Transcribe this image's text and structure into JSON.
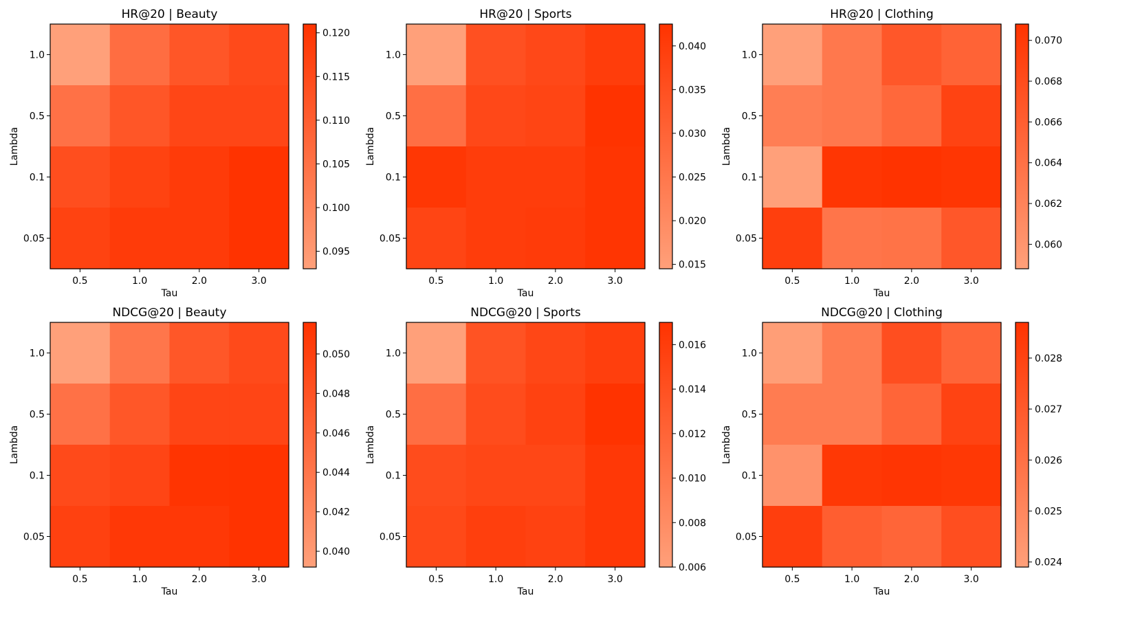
{
  "colormap": {
    "low": "#ffa07a",
    "high": "#ff3300"
  },
  "chart_data": [
    {
      "type": "heatmap",
      "title": "HR@20 | Beauty",
      "xlabel": "Tau",
      "ylabel": "Lambda",
      "x_categories": [
        "0.5",
        "1.0",
        "2.0",
        "3.0"
      ],
      "y_categories": [
        "1.0",
        "0.5",
        "0.1",
        "0.05"
      ],
      "values": [
        [
          0.093,
          0.106,
          0.112,
          0.115
        ],
        [
          0.105,
          0.112,
          0.116,
          0.116
        ],
        [
          0.114,
          0.117,
          0.119,
          0.121
        ],
        [
          0.117,
          0.119,
          0.119,
          0.121
        ]
      ],
      "vmin": 0.093,
      "vmax": 0.121,
      "colorbar_ticks": [
        "0.095",
        "0.100",
        "0.105",
        "0.110",
        "0.115",
        "0.120"
      ],
      "colorbar_tick_values": [
        0.095,
        0.1,
        0.105,
        0.11,
        0.115,
        0.12
      ]
    },
    {
      "type": "heatmap",
      "title": "HR@20 | Sports",
      "xlabel": "Tau",
      "ylabel": "Lambda",
      "x_categories": [
        "0.5",
        "1.0",
        "2.0",
        "3.0"
      ],
      "y_categories": [
        "1.0",
        "0.5",
        "0.1",
        "0.05"
      ],
      "values": [
        [
          0.0145,
          0.035,
          0.037,
          0.04
        ],
        [
          0.027,
          0.037,
          0.038,
          0.0425
        ],
        [
          0.0415,
          0.04,
          0.04,
          0.042
        ],
        [
          0.038,
          0.04,
          0.0405,
          0.042
        ]
      ],
      "vmin": 0.0145,
      "vmax": 0.0425,
      "colorbar_ticks": [
        "0.015",
        "0.020",
        "0.025",
        "0.030",
        "0.035",
        "0.040"
      ],
      "colorbar_tick_values": [
        0.015,
        0.02,
        0.025,
        0.03,
        0.035,
        0.04
      ]
    },
    {
      "type": "heatmap",
      "title": "HR@20 | Clothing",
      "xlabel": "Tau",
      "ylabel": "Lambda",
      "x_categories": [
        "0.5",
        "1.0",
        "2.0",
        "3.0"
      ],
      "y_categories": [
        "1.0",
        "0.5",
        "0.1",
        "0.05"
      ],
      "values": [
        [
          0.0588,
          0.0632,
          0.0668,
          0.0655
        ],
        [
          0.0625,
          0.0632,
          0.065,
          0.069
        ],
        [
          0.0588,
          0.0705,
          0.0708,
          0.0705
        ],
        [
          0.0695,
          0.0635,
          0.0638,
          0.0668
        ]
      ],
      "vmin": 0.0588,
      "vmax": 0.0708,
      "colorbar_ticks": [
        "0.060",
        "0.062",
        "0.064",
        "0.066",
        "0.068",
        "0.070"
      ],
      "colorbar_tick_values": [
        0.06,
        0.062,
        0.064,
        0.066,
        0.068,
        0.07
      ]
    },
    {
      "type": "heatmap",
      "title": "NDCG@20 | Beauty",
      "xlabel": "Tau",
      "ylabel": "Lambda",
      "x_categories": [
        "0.5",
        "1.0",
        "2.0",
        "3.0"
      ],
      "y_categories": [
        "1.0",
        "0.5",
        "0.1",
        "0.05"
      ],
      "values": [
        [
          0.0392,
          0.044,
          0.0475,
          0.049
        ],
        [
          0.0445,
          0.0475,
          0.0495,
          0.0495
        ],
        [
          0.049,
          0.0495,
          0.0515,
          0.0516
        ],
        [
          0.05,
          0.051,
          0.051,
          0.0516
        ]
      ],
      "vmin": 0.0392,
      "vmax": 0.0516,
      "colorbar_ticks": [
        "0.040",
        "0.042",
        "0.044",
        "0.046",
        "0.048",
        "0.050"
      ],
      "colorbar_tick_values": [
        0.04,
        0.042,
        0.044,
        0.046,
        0.048,
        0.05
      ]
    },
    {
      "type": "heatmap",
      "title": "NDCG@20 | Sports",
      "xlabel": "Tau",
      "ylabel": "Lambda",
      "x_categories": [
        "0.5",
        "1.0",
        "2.0",
        "3.0"
      ],
      "y_categories": [
        "1.0",
        "0.5",
        "0.1",
        "0.05"
      ],
      "values": [
        [
          0.006,
          0.0138,
          0.015,
          0.0158
        ],
        [
          0.011,
          0.0145,
          0.0155,
          0.017
        ],
        [
          0.0145,
          0.015,
          0.015,
          0.0165
        ],
        [
          0.0148,
          0.0158,
          0.0155,
          0.0165
        ]
      ],
      "vmin": 0.006,
      "vmax": 0.017,
      "colorbar_ticks": [
        "0.006",
        "0.008",
        "0.010",
        "0.012",
        "0.014",
        "0.016"
      ],
      "colorbar_tick_values": [
        0.006,
        0.008,
        0.01,
        0.012,
        0.014,
        0.016
      ]
    },
    {
      "type": "heatmap",
      "title": "NDCG@20 | Clothing",
      "xlabel": "Tau",
      "ylabel": "Lambda",
      "x_categories": [
        "0.5",
        "1.0",
        "2.0",
        "3.0"
      ],
      "y_categories": [
        "1.0",
        "0.5",
        "0.1",
        "0.05"
      ],
      "values": [
        [
          0.024,
          0.0255,
          0.0275,
          0.0265
        ],
        [
          0.0255,
          0.0255,
          0.0265,
          0.028
        ],
        [
          0.0245,
          0.0285,
          0.0286,
          0.0285
        ],
        [
          0.0282,
          0.0268,
          0.0265,
          0.0275
        ]
      ],
      "vmin": 0.0239,
      "vmax": 0.0287,
      "colorbar_ticks": [
        "0.024",
        "0.025",
        "0.026",
        "0.027",
        "0.028"
      ],
      "colorbar_tick_values": [
        0.024,
        0.025,
        0.026,
        0.027,
        0.028
      ]
    }
  ]
}
